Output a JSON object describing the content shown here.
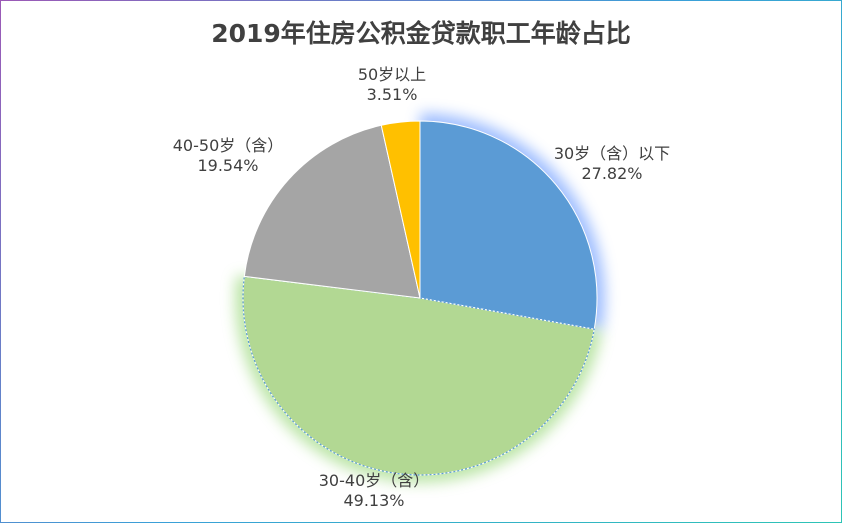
{
  "chart_data": {
    "type": "pie",
    "title": "2019年住房公积金贷款职工年龄占比",
    "slices": [
      {
        "label": "30岁（含）以下",
        "value": 27.82,
        "value_label": "27.82%",
        "color": "#5b9bd5",
        "glow": "#7fa8ff"
      },
      {
        "label": "30-40岁（含）",
        "value": 49.13,
        "value_label": "49.13%",
        "color": "#b2d893",
        "glow": "#a6dd8a"
      },
      {
        "label": "40-50岁（含）",
        "value": 19.54,
        "value_label": "19.54%",
        "color": "#a5a5a5",
        "glow": ""
      },
      {
        "label": "50岁以上",
        "value": 3.51,
        "value_label": "3.51%",
        "color": "#ffc000",
        "glow": ""
      }
    ],
    "start_angle_deg": 0,
    "direction": "clockwise",
    "legend": "none",
    "data_labels": "outside"
  }
}
